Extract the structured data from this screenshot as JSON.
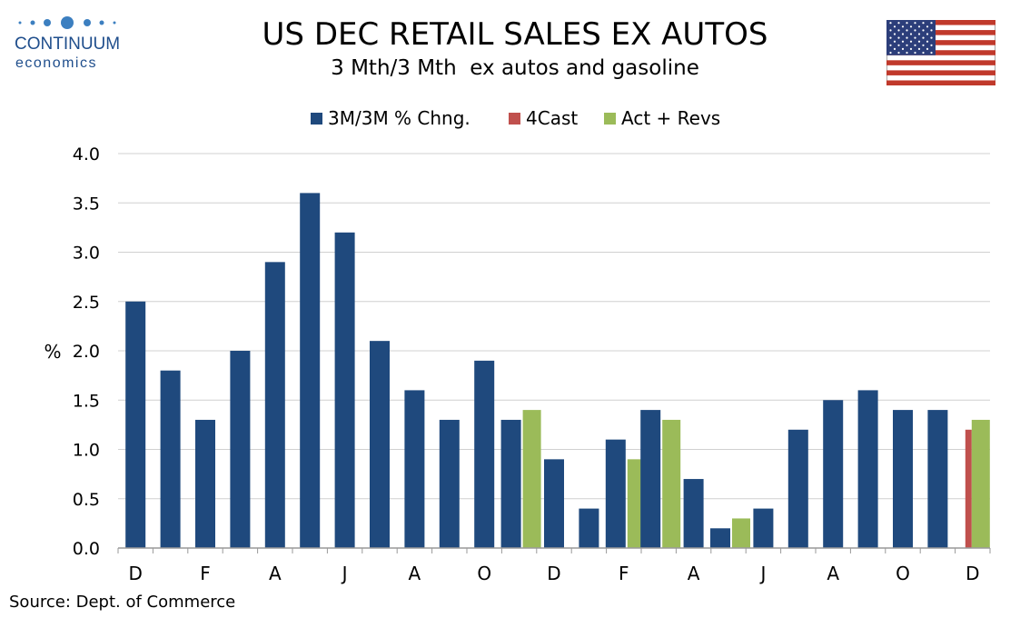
{
  "logo": {
    "name": "CONTINUUM",
    "sub": "economics",
    "color": "#1f4e8c"
  },
  "title": "US DEC RETAIL SALES EX AUTOS",
  "subtitle": "3 Mth/3 Mth  ex autos and gasoline",
  "flag_icon": "us-flag-icon",
  "source": "Source: Dept. of Commerce",
  "legend": [
    {
      "label": "3M/3M % Chng.",
      "color": "#1f497d"
    },
    {
      "label": "4Cast",
      "color": "#c0504d"
    },
    {
      "label": "Act + Revs",
      "color": "#9bbb59"
    }
  ],
  "chart_data": {
    "type": "bar",
    "ylabel": "%",
    "ylim": [
      0,
      4.0
    ],
    "yticks": [
      "0.0",
      "0.5",
      "1.0",
      "1.5",
      "2.0",
      "2.5",
      "3.0",
      "3.5",
      "4.0"
    ],
    "grid": true,
    "legend_position": "top",
    "categories": [
      "D",
      "",
      "F",
      "",
      "A",
      "",
      "J",
      "",
      "A",
      "",
      "O",
      "",
      "D",
      "",
      "F",
      "",
      "A",
      "",
      "J",
      "",
      "A",
      "",
      "O",
      "",
      "D"
    ],
    "series": [
      {
        "name": "3M/3M % Chng.",
        "color": "#1f497d",
        "values": [
          2.5,
          1.8,
          1.3,
          2.0,
          2.9,
          3.6,
          3.2,
          2.1,
          1.6,
          1.3,
          1.9,
          1.3,
          0.9,
          0.4,
          1.1,
          1.4,
          0.7,
          0.2,
          0.4,
          1.2,
          1.5,
          1.6,
          1.4,
          1.4,
          null
        ]
      },
      {
        "name": "4Cast",
        "color": "#c0504d",
        "values": [
          null,
          null,
          null,
          null,
          null,
          null,
          null,
          null,
          null,
          null,
          null,
          null,
          null,
          null,
          null,
          null,
          null,
          null,
          null,
          null,
          null,
          null,
          null,
          null,
          1.2
        ]
      },
      {
        "name": "Act + Revs",
        "color": "#9bbb59",
        "values": [
          null,
          null,
          null,
          null,
          null,
          null,
          null,
          null,
          null,
          null,
          null,
          1.4,
          null,
          null,
          0.9,
          1.3,
          null,
          0.3,
          null,
          null,
          null,
          null,
          null,
          null,
          1.3
        ]
      }
    ]
  }
}
